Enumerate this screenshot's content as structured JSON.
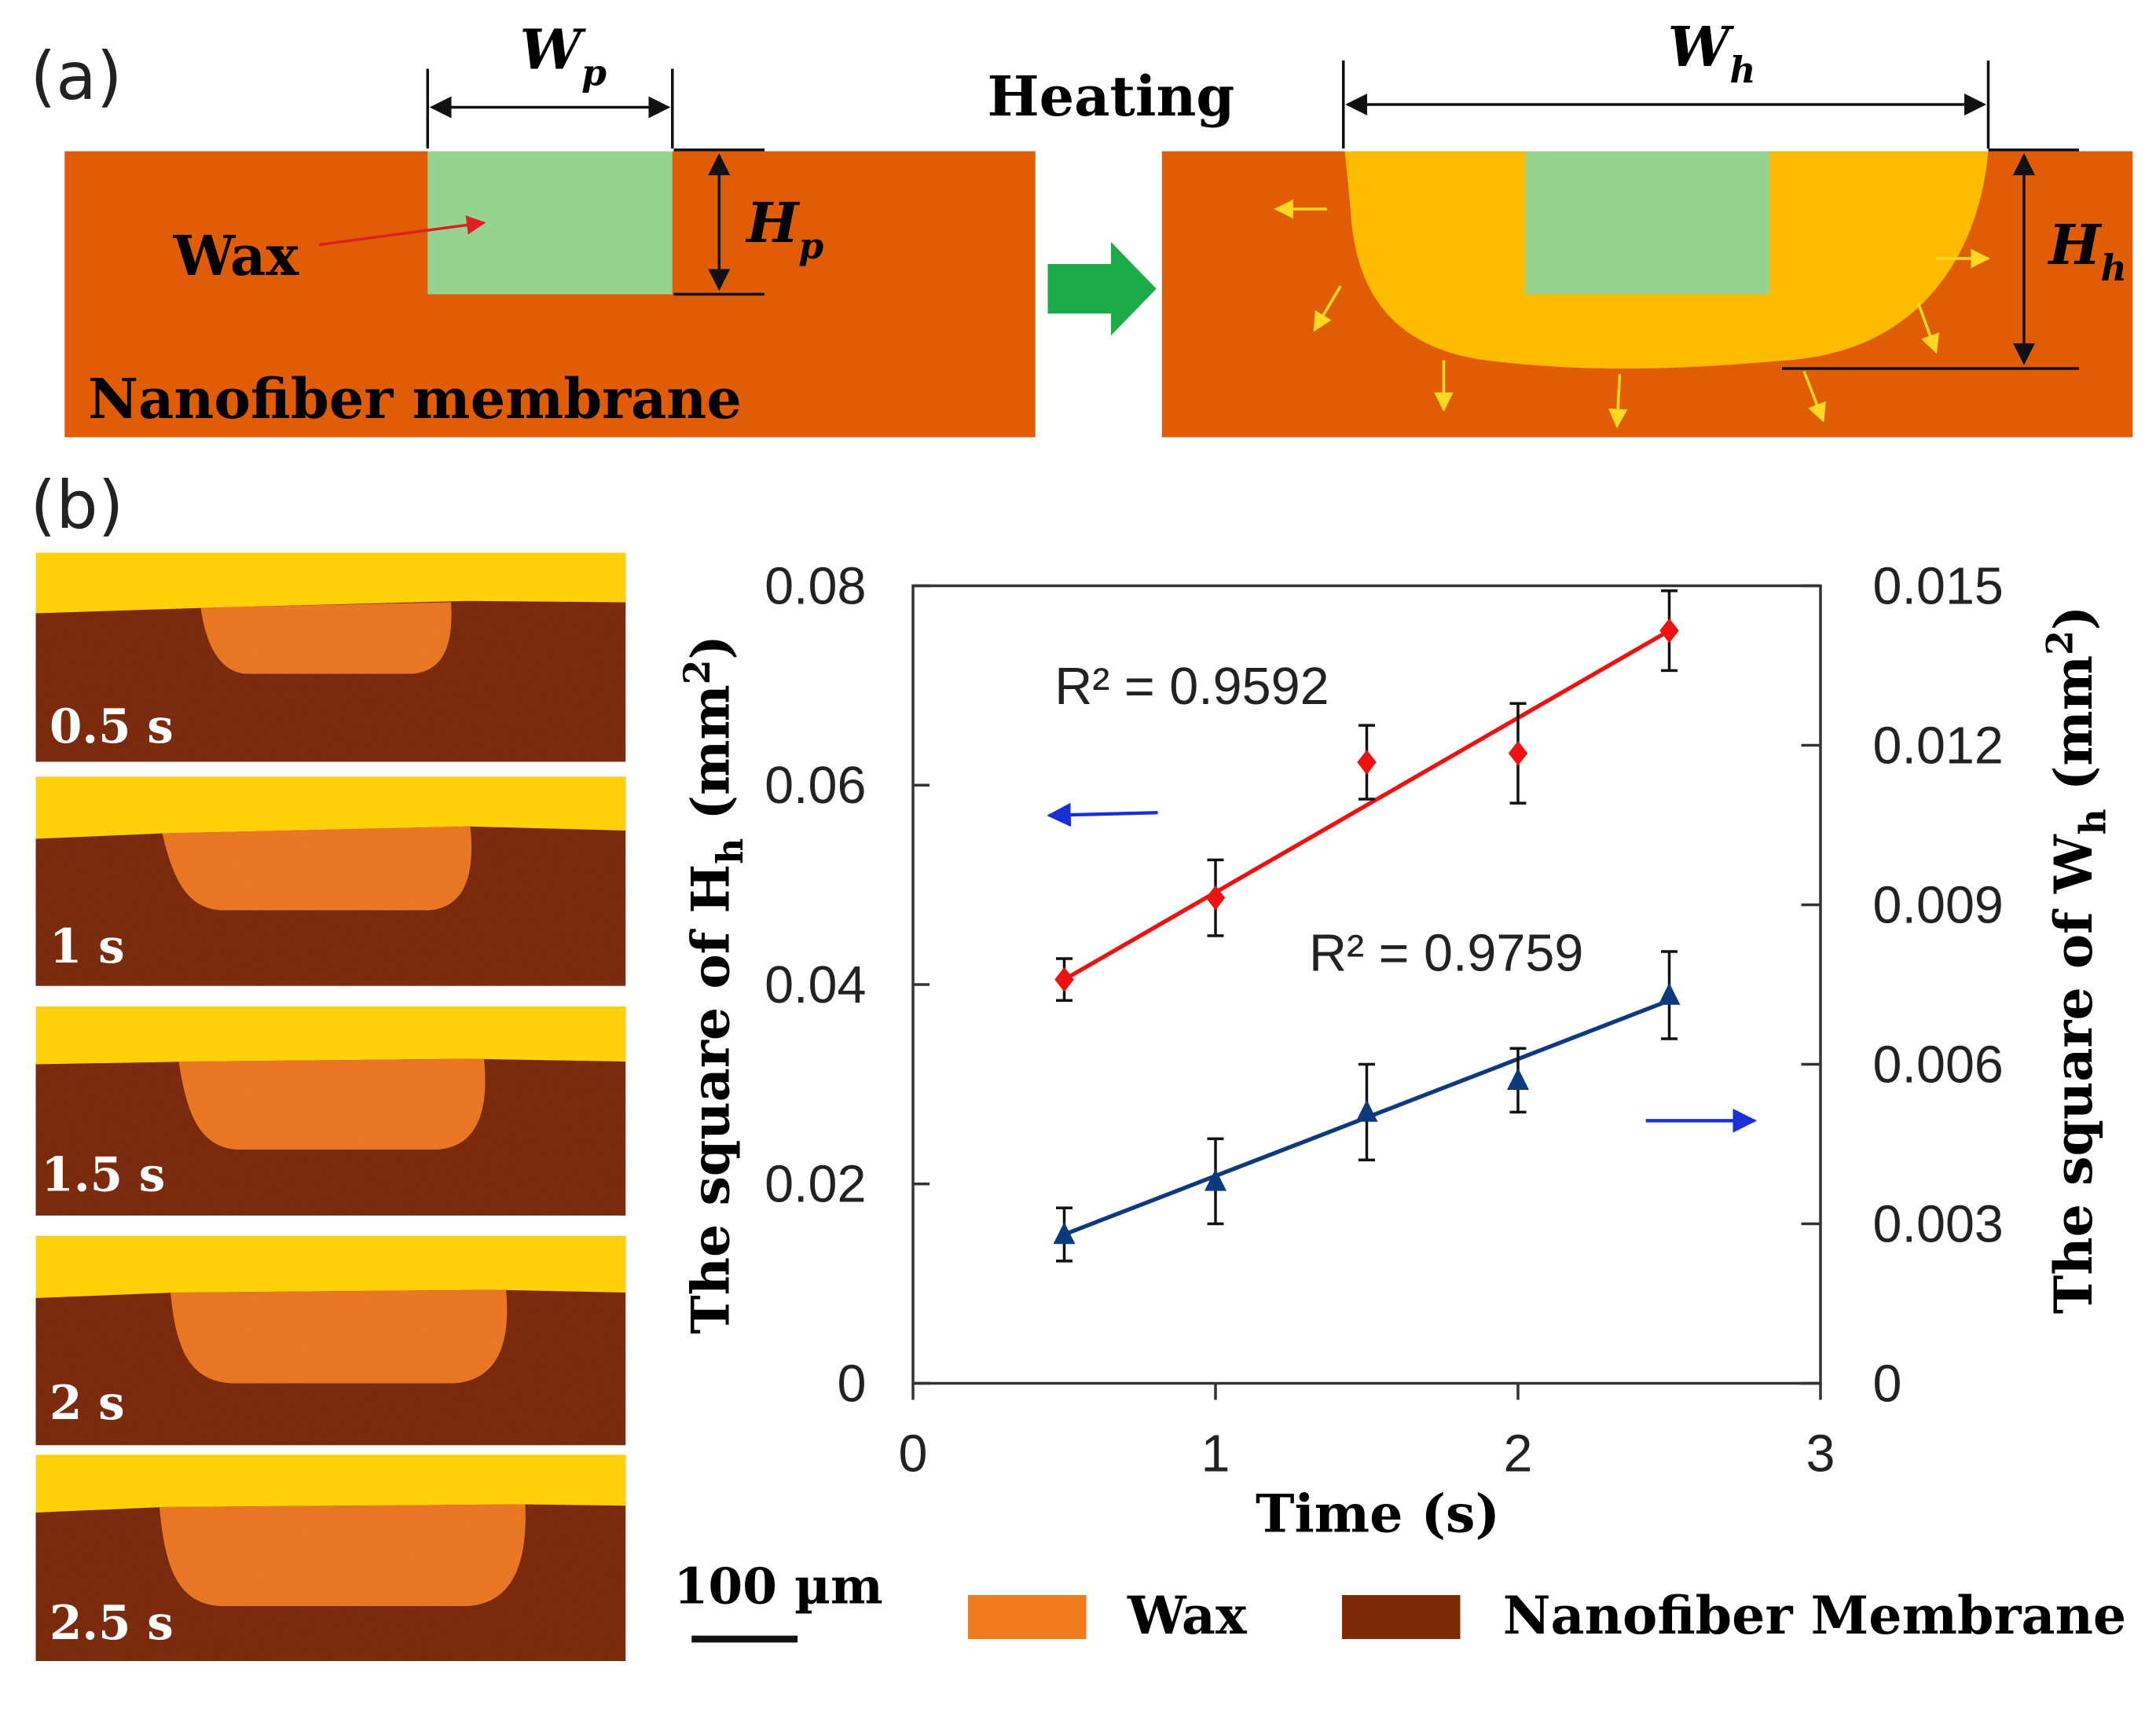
{
  "panel_a": {
    "label": "(a)",
    "heating_label": "Heating",
    "wax_label": "Wax",
    "membrane_label": "Nanofiber membrane",
    "wp": {
      "main": "W",
      "sub": "p"
    },
    "hp": {
      "main": "H",
      "sub": "p"
    },
    "wh": {
      "main": "W",
      "sub": "h"
    },
    "hh": {
      "main": "H",
      "sub": "h"
    },
    "colors": {
      "membrane": "#e05c05",
      "wax": "#96d390",
      "melt": "#ffbb00",
      "arrow": "#ffd820",
      "heating_arrow": "#1cab48"
    }
  },
  "panel_b": {
    "label": "(b)",
    "micrographs": [
      {
        "time_label": "0.5 s"
      },
      {
        "time_label": "1 s"
      },
      {
        "time_label": "1.5 s"
      },
      {
        "time_label": "2 s"
      },
      {
        "time_label": "2.5 s"
      }
    ],
    "scale_bar": "100 µm",
    "legend": [
      {
        "name": "Wax",
        "color": "#f07a1e"
      },
      {
        "name": "Nanofiber Membrane",
        "color": "#7d2a08"
      }
    ],
    "colors": {
      "image_top": "#ffd10a",
      "image_membrane": "#7e2d08",
      "image_wax": "#ed7a25"
    }
  },
  "chart_data": {
    "type": "scatter",
    "xlabel": "Time (s)",
    "ylabel": {
      "prefix": "The square of H",
      "sub": "h",
      "suffix": " (mm",
      "sup": "2",
      "close": ")"
    },
    "y2label": {
      "prefix": "The square of W",
      "sub": "h",
      "suffix": " (mm",
      "sup": "2",
      "close": ")"
    },
    "xlim": [
      0,
      3
    ],
    "ylim": [
      0,
      0.08
    ],
    "y2lim": [
      0,
      0.015
    ],
    "xticks": [
      "0",
      "1",
      "2",
      "3"
    ],
    "yticks": [
      "0",
      "0.02",
      "0.04",
      "0.06",
      "0.08"
    ],
    "y2ticks": [
      "0",
      "0.003",
      "0.006",
      "0.009",
      "0.012",
      "0.015"
    ],
    "series": [
      {
        "name": "Hh squared",
        "axis": "left",
        "marker": "diamond",
        "color": "#ee1111",
        "x": [
          0.5,
          1,
          1.5,
          2,
          2.5
        ],
        "y": [
          0.0405,
          0.0487,
          0.0623,
          0.0632,
          0.0755
        ],
        "err": [
          0.0021,
          0.0038,
          0.0037,
          0.005,
          0.004
        ],
        "fit": {
          "x0": 0.5,
          "y0": 0.0405,
          "x1": 2.5,
          "y1": 0.0755
        },
        "r2_label": "R² = 0.9592"
      },
      {
        "name": "Wh squared",
        "axis": "right",
        "marker": "triangle",
        "color": "#0d3a7e",
        "x": [
          0.5,
          1,
          1.5,
          2,
          2.5
        ],
        "y": [
          0.0028,
          0.0038,
          0.0051,
          0.0057,
          0.0073
        ],
        "err": [
          0.0005,
          0.0008,
          0.0009,
          0.0006,
          0.00082
        ],
        "fit": {
          "x0": 0.5,
          "y0": 0.0028,
          "x1": 2.5,
          "y1": 0.0072
        },
        "r2_label": "R² = 0.9759"
      }
    ],
    "axis_arrow_color": "#1a2fd6"
  }
}
